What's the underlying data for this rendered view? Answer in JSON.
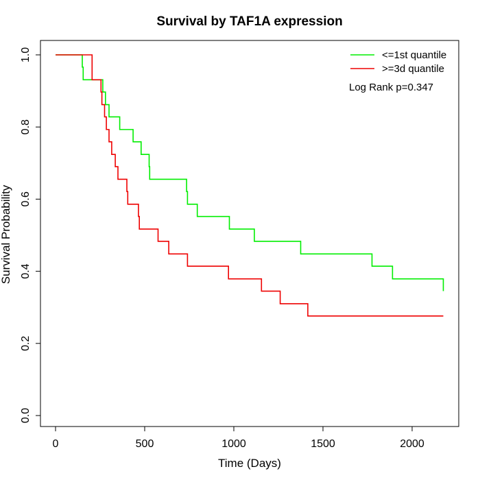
{
  "chart_data": {
    "type": "line",
    "step": true,
    "title": "Survival by TAF1A expression",
    "xlabel": "Time (Days)",
    "ylabel": "Survival Probability",
    "xlim": [
      0,
      2250
    ],
    "ylim": [
      0,
      1.0
    ],
    "xticks": [
      0,
      500,
      1000,
      1500,
      2000
    ],
    "yticks": [
      0.0,
      0.2,
      0.4,
      0.6,
      0.8,
      1.0
    ],
    "xtick_labels": [
      "0",
      "500",
      "1000",
      "1500",
      "2000"
    ],
    "ytick_labels": [
      "0.0",
      "0.2",
      "0.4",
      "0.6",
      "0.8",
      "1.0"
    ],
    "legend_position": "top-right",
    "annotation": "Log Rank p=0.347",
    "series": [
      {
        "name": "<=1st quantile",
        "color": "#00ee00",
        "x": [
          0,
          148,
          150,
          155,
          250,
          265,
          280,
          300,
          360,
          435,
          480,
          525,
          528,
          660,
          735,
          740,
          795,
          975,
          1115,
          1375,
          1775,
          1890,
          2175
        ],
        "y": [
          1.0,
          1.0,
          0.966,
          0.931,
          0.931,
          0.897,
          0.862,
          0.828,
          0.793,
          0.759,
          0.724,
          0.69,
          0.655,
          0.655,
          0.621,
          0.586,
          0.552,
          0.517,
          0.483,
          0.448,
          0.414,
          0.379,
          0.345
        ]
      },
      {
        "name": ">=3d quantile",
        "color": "#ee0000",
        "x": [
          0,
          200,
          205,
          240,
          255,
          260,
          275,
          285,
          300,
          305,
          315,
          335,
          350,
          385,
          400,
          405,
          465,
          470,
          480,
          575,
          635,
          740,
          970,
          1155,
          1260,
          1415,
          2175
        ],
        "y": [
          1.0,
          1.0,
          0.931,
          0.931,
          0.897,
          0.862,
          0.828,
          0.793,
          0.759,
          0.759,
          0.724,
          0.69,
          0.655,
          0.655,
          0.621,
          0.586,
          0.552,
          0.517,
          0.517,
          0.483,
          0.448,
          0.414,
          0.379,
          0.345,
          0.31,
          0.276,
          0.276
        ]
      }
    ]
  }
}
